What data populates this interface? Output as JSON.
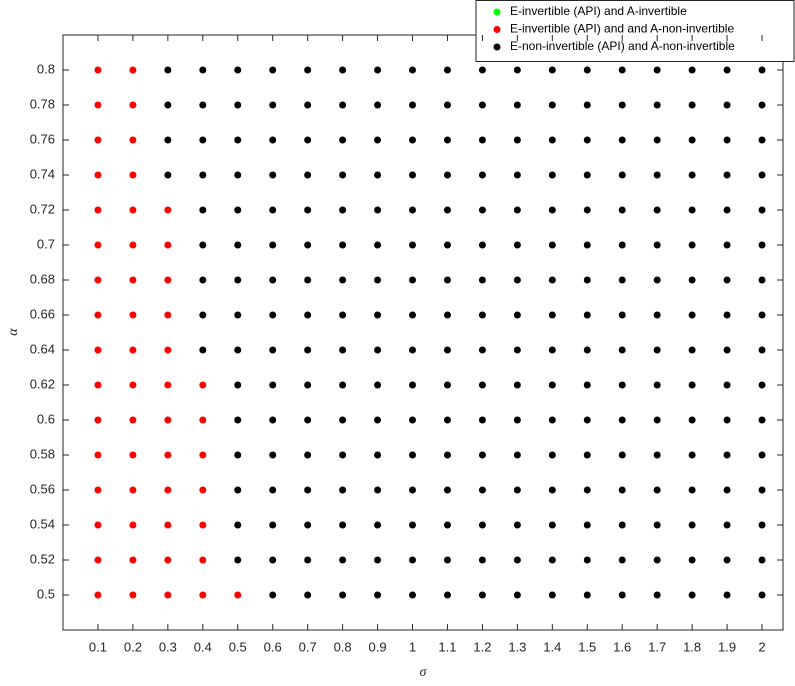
{
  "chart_data": {
    "type": "scatter",
    "xlabel": "σ",
    "ylabel": "α",
    "xlim": [
      0,
      2.06
    ],
    "ylim": [
      0.48,
      0.82
    ],
    "xticks": [
      0.1,
      0.2,
      0.3,
      0.4,
      0.5,
      0.6,
      0.7,
      0.8,
      0.9,
      1,
      1.1,
      1.2,
      1.3,
      1.4,
      1.5,
      1.6,
      1.7,
      1.8,
      1.9,
      2
    ],
    "yticks": [
      0.5,
      0.52,
      0.54,
      0.56,
      0.58,
      0.6,
      0.62,
      0.64,
      0.66,
      0.68,
      0.7,
      0.72,
      0.74,
      0.76,
      0.78,
      0.8
    ],
    "legend": "top-right",
    "series": [
      {
        "name": "E-invertible (API) and A-invertible",
        "color": "#00ff00",
        "x": [],
        "y": []
      },
      {
        "name": "E-invertible (API) and and A-non-invertible",
        "color": "#ff0000",
        "x": [
          0.1,
          0.2,
          0.3,
          0.4,
          0.5,
          0.1,
          0.2,
          0.3,
          0.4,
          0.1,
          0.2,
          0.3,
          0.4,
          0.1,
          0.2,
          0.3,
          0.4,
          0.1,
          0.2,
          0.3,
          0.4,
          0.1,
          0.2,
          0.3,
          0.4,
          0.1,
          0.2,
          0.3,
          0.4,
          0.1,
          0.2,
          0.3,
          0.1,
          0.2,
          0.3,
          0.1,
          0.2,
          0.3,
          0.1,
          0.2,
          0.3,
          0.1,
          0.2,
          0.3,
          0.1,
          0.2,
          0.1,
          0.2,
          0.1,
          0.2,
          0.1,
          0.2
        ],
        "y": [
          0.5,
          0.5,
          0.5,
          0.5,
          0.5,
          0.52,
          0.52,
          0.52,
          0.52,
          0.54,
          0.54,
          0.54,
          0.54,
          0.56,
          0.56,
          0.56,
          0.56,
          0.58,
          0.58,
          0.58,
          0.58,
          0.6,
          0.6,
          0.6,
          0.6,
          0.62,
          0.62,
          0.62,
          0.62,
          0.64,
          0.64,
          0.64,
          0.66,
          0.66,
          0.66,
          0.68,
          0.68,
          0.68,
          0.7,
          0.7,
          0.7,
          0.72,
          0.72,
          0.72,
          0.74,
          0.74,
          0.76,
          0.76,
          0.78,
          0.78,
          0.8,
          0.8
        ]
      },
      {
        "name": "E-non-invertible (API) and A-non-invertible",
        "color": "#000000",
        "x": [
          0.6,
          0.7,
          0.8,
          0.9,
          1,
          1.1,
          1.2,
          1.3,
          1.4,
          1.5,
          1.6,
          1.7,
          1.8,
          1.9,
          2,
          0.5,
          0.6,
          0.7,
          0.8,
          0.9,
          1,
          1.1,
          1.2,
          1.3,
          1.4,
          1.5,
          1.6,
          1.7,
          1.8,
          1.9,
          2,
          0.5,
          0.6,
          0.7,
          0.8,
          0.9,
          1,
          1.1,
          1.2,
          1.3,
          1.4,
          1.5,
          1.6,
          1.7,
          1.8,
          1.9,
          2,
          0.5,
          0.6,
          0.7,
          0.8,
          0.9,
          1,
          1.1,
          1.2,
          1.3,
          1.4,
          1.5,
          1.6,
          1.7,
          1.8,
          1.9,
          2,
          0.5,
          0.6,
          0.7,
          0.8,
          0.9,
          1,
          1.1,
          1.2,
          1.3,
          1.4,
          1.5,
          1.6,
          1.7,
          1.8,
          1.9,
          2,
          0.5,
          0.6,
          0.7,
          0.8,
          0.9,
          1,
          1.1,
          1.2,
          1.3,
          1.4,
          1.5,
          1.6,
          1.7,
          1.8,
          1.9,
          2,
          0.5,
          0.6,
          0.7,
          0.8,
          0.9,
          1,
          1.1,
          1.2,
          1.3,
          1.4,
          1.5,
          1.6,
          1.7,
          1.8,
          1.9,
          2,
          0.4,
          0.5,
          0.6,
          0.7,
          0.8,
          0.9,
          1,
          1.1,
          1.2,
          1.3,
          1.4,
          1.5,
          1.6,
          1.7,
          1.8,
          1.9,
          2,
          0.4,
          0.5,
          0.6,
          0.7,
          0.8,
          0.9,
          1,
          1.1,
          1.2,
          1.3,
          1.4,
          1.5,
          1.6,
          1.7,
          1.8,
          1.9,
          2,
          0.4,
          0.5,
          0.6,
          0.7,
          0.8,
          0.9,
          1,
          1.1,
          1.2,
          1.3,
          1.4,
          1.5,
          1.6,
          1.7,
          1.8,
          1.9,
          2,
          0.4,
          0.5,
          0.6,
          0.7,
          0.8,
          0.9,
          1,
          1.1,
          1.2,
          1.3,
          1.4,
          1.5,
          1.6,
          1.7,
          1.8,
          1.9,
          2,
          0.4,
          0.5,
          0.6,
          0.7,
          0.8,
          0.9,
          1,
          1.1,
          1.2,
          1.3,
          1.4,
          1.5,
          1.6,
          1.7,
          1.8,
          1.9,
          2,
          0.3,
          0.4,
          0.5,
          0.6,
          0.7,
          0.8,
          0.9,
          1,
          1.1,
          1.2,
          1.3,
          1.4,
          1.5,
          1.6,
          1.7,
          1.8,
          1.9,
          2,
          0.3,
          0.4,
          0.5,
          0.6,
          0.7,
          0.8,
          0.9,
          1,
          1.1,
          1.2,
          1.3,
          1.4,
          1.5,
          1.6,
          1.7,
          1.8,
          1.9,
          2,
          0.3,
          0.4,
          0.5,
          0.6,
          0.7,
          0.8,
          0.9,
          1,
          1.1,
          1.2,
          1.3,
          1.4,
          1.5,
          1.6,
          1.7,
          1.8,
          1.9,
          2,
          0.3,
          0.4,
          0.5,
          0.6,
          0.7,
          0.8,
          0.9,
          1,
          1.1,
          1.2,
          1.3,
          1.4,
          1.5,
          1.6,
          1.7,
          1.8,
          1.9,
          2
        ],
        "y": [
          0.5,
          0.5,
          0.5,
          0.5,
          0.5,
          0.5,
          0.5,
          0.5,
          0.5,
          0.5,
          0.5,
          0.5,
          0.5,
          0.5,
          0.5,
          0.52,
          0.52,
          0.52,
          0.52,
          0.52,
          0.52,
          0.52,
          0.52,
          0.52,
          0.52,
          0.52,
          0.52,
          0.52,
          0.52,
          0.52,
          0.52,
          0.54,
          0.54,
          0.54,
          0.54,
          0.54,
          0.54,
          0.54,
          0.54,
          0.54,
          0.54,
          0.54,
          0.54,
          0.54,
          0.54,
          0.54,
          0.54,
          0.56,
          0.56,
          0.56,
          0.56,
          0.56,
          0.56,
          0.56,
          0.56,
          0.56,
          0.56,
          0.56,
          0.56,
          0.56,
          0.56,
          0.56,
          0.56,
          0.58,
          0.58,
          0.58,
          0.58,
          0.58,
          0.58,
          0.58,
          0.58,
          0.58,
          0.58,
          0.58,
          0.58,
          0.58,
          0.58,
          0.58,
          0.58,
          0.6,
          0.6,
          0.6,
          0.6,
          0.6,
          0.6,
          0.6,
          0.6,
          0.6,
          0.6,
          0.6,
          0.6,
          0.6,
          0.6,
          0.6,
          0.6,
          0.62,
          0.62,
          0.62,
          0.62,
          0.62,
          0.62,
          0.62,
          0.62,
          0.62,
          0.62,
          0.62,
          0.62,
          0.62,
          0.62,
          0.62,
          0.62,
          0.64,
          0.64,
          0.64,
          0.64,
          0.64,
          0.64,
          0.64,
          0.64,
          0.64,
          0.64,
          0.64,
          0.64,
          0.64,
          0.64,
          0.64,
          0.64,
          0.64,
          0.66,
          0.66,
          0.66,
          0.66,
          0.66,
          0.66,
          0.66,
          0.66,
          0.66,
          0.66,
          0.66,
          0.66,
          0.66,
          0.66,
          0.66,
          0.66,
          0.66,
          0.68,
          0.68,
          0.68,
          0.68,
          0.68,
          0.68,
          0.68,
          0.68,
          0.68,
          0.68,
          0.68,
          0.68,
          0.68,
          0.68,
          0.68,
          0.68,
          0.68,
          0.7,
          0.7,
          0.7,
          0.7,
          0.7,
          0.7,
          0.7,
          0.7,
          0.7,
          0.7,
          0.7,
          0.7,
          0.7,
          0.7,
          0.7,
          0.7,
          0.7,
          0.72,
          0.72,
          0.72,
          0.72,
          0.72,
          0.72,
          0.72,
          0.72,
          0.72,
          0.72,
          0.72,
          0.72,
          0.72,
          0.72,
          0.72,
          0.72,
          0.72,
          0.74,
          0.74,
          0.74,
          0.74,
          0.74,
          0.74,
          0.74,
          0.74,
          0.74,
          0.74,
          0.74,
          0.74,
          0.74,
          0.74,
          0.74,
          0.74,
          0.74,
          0.74,
          0.76,
          0.76,
          0.76,
          0.76,
          0.76,
          0.76,
          0.76,
          0.76,
          0.76,
          0.76,
          0.76,
          0.76,
          0.76,
          0.76,
          0.76,
          0.76,
          0.76,
          0.76,
          0.78,
          0.78,
          0.78,
          0.78,
          0.78,
          0.78,
          0.78,
          0.78,
          0.78,
          0.78,
          0.78,
          0.78,
          0.78,
          0.78,
          0.78,
          0.78,
          0.78,
          0.78,
          0.8,
          0.8,
          0.8,
          0.8,
          0.8,
          0.8,
          0.8,
          0.8,
          0.8,
          0.8,
          0.8,
          0.8,
          0.8,
          0.8,
          0.8,
          0.8,
          0.8,
          0.8
        ]
      }
    ]
  }
}
